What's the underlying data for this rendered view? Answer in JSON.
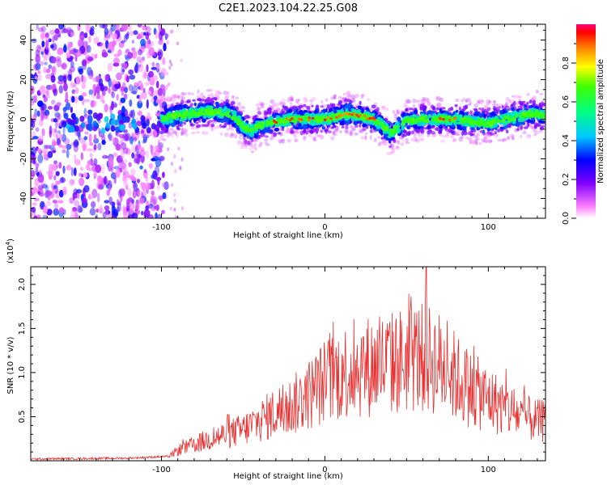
{
  "figure_title": "C2E1.2023.104.22.25.G08",
  "chart_data": [
    {
      "type": "heatmap",
      "xlabel": "Height of straight line (km)",
      "ylabel": "Frequency (Hz)",
      "xlim": [
        -180,
        135
      ],
      "ylim": [
        -50,
        48
      ],
      "xticks": [
        -100,
        0,
        100
      ],
      "xtick_labels": [
        "-100",
        "0",
        "100"
      ],
      "yticks": [
        -40,
        -20,
        0,
        20,
        40
      ],
      "ytick_labels": [
        "-40",
        "-20",
        "0",
        "20",
        "40"
      ],
      "colorbar": {
        "label": "Normalized spectral amplitude",
        "range": [
          0,
          1
        ],
        "ticks": [
          0.0,
          0.2,
          0.4,
          0.6,
          0.8
        ],
        "tick_labels": [
          "0.0",
          "0.2",
          "0.4",
          "0.6",
          "0.8"
        ],
        "colormap": "rainbow"
      },
      "ridge": {
        "x": [
          -100,
          -90,
          -80,
          -70,
          -60,
          -55,
          -50,
          -45,
          -40,
          -30,
          -20,
          -10,
          0,
          10,
          15,
          20,
          30,
          35,
          40,
          45,
          50,
          60,
          70,
          80,
          90,
          100,
          110,
          120,
          130,
          135
        ],
        "y": [
          0,
          2,
          3,
          4,
          3,
          1,
          -4,
          -6,
          -3,
          -1,
          0,
          0,
          0,
          2,
          3,
          2,
          0,
          -3,
          -7,
          -4,
          -1,
          0,
          0,
          0,
          -1,
          -2,
          0,
          2,
          3,
          1
        ]
      },
      "noise_region_x": [
        -180,
        -97
      ],
      "grid": false
    },
    {
      "type": "line",
      "xlabel": "Height of straight line (km)",
      "ylabel": "SNR (10 * v/v)",
      "y_multiplier": "(x10",
      "y_multiplier_exp": "4",
      "y_multiplier_close": ")",
      "xlim": [
        -180,
        135
      ],
      "ylim": [
        0,
        2.2
      ],
      "xticks": [
        -100,
        0,
        100
      ],
      "xtick_labels": [
        "-100",
        "0",
        "100"
      ],
      "yticks": [
        0.5,
        1.0,
        1.5,
        2.0
      ],
      "ytick_labels": [
        "0.5",
        "1.0",
        "1.5",
        "2.0"
      ],
      "series_color": "#e83030",
      "envelope": {
        "x": [
          -180,
          -120,
          -95,
          -90,
          -80,
          -70,
          -60,
          -50,
          -40,
          -30,
          -20,
          -10,
          0,
          10,
          20,
          30,
          40,
          50,
          60,
          70,
          80,
          90,
          100,
          110,
          120,
          130,
          135
        ],
        "y": [
          0.02,
          0.03,
          0.05,
          0.12,
          0.18,
          0.25,
          0.3,
          0.35,
          0.45,
          0.55,
          0.62,
          0.75,
          0.9,
          1.0,
          1.05,
          1.08,
          1.1,
          1.15,
          1.18,
          1.1,
          0.95,
          0.8,
          0.7,
          0.6,
          0.5,
          0.45,
          0.45
        ]
      },
      "peak": {
        "x": 62,
        "y": 2.2
      },
      "grid": false
    }
  ],
  "colors": {
    "axis": "#000000",
    "line": "#e83030",
    "background": "#ffffff"
  }
}
